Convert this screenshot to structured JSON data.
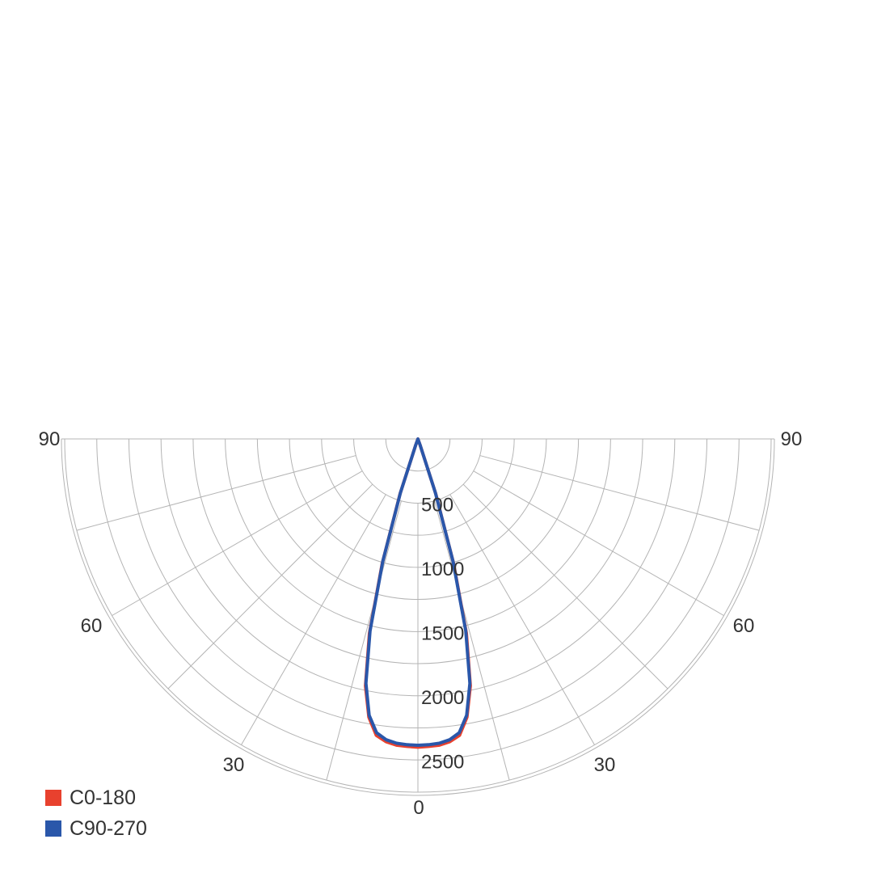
{
  "chart_data": {
    "type": "polar",
    "title": "",
    "angle_ticks": [
      "90",
      "60",
      "30",
      "0",
      "30",
      "60",
      "90"
    ],
    "radial_ticks": [
      "500",
      "1000",
      "1500",
      "2000",
      "2500"
    ],
    "rlim": [
      0,
      2750
    ],
    "angle_range": [
      -90,
      90
    ],
    "grid": true,
    "legend_position": "bottom-left",
    "series": [
      {
        "name": "C0-180",
        "color": "#e8412e",
        "angles": [
          -90,
          -20,
          -18,
          -16,
          -14,
          -12,
          -10,
          -8,
          -6,
          -4,
          -2,
          0,
          2,
          4,
          6,
          8,
          10,
          12,
          14,
          16,
          18,
          20,
          90
        ],
        "values": [
          0,
          50,
          450,
          1010,
          1560,
          1965,
          2200,
          2330,
          2370,
          2390,
          2395,
          2400,
          2395,
          2390,
          2370,
          2330,
          2200,
          1965,
          1560,
          1010,
          450,
          50,
          0
        ]
      },
      {
        "name": "C90-270",
        "color": "#2a57aa",
        "angles": [
          -90,
          -20,
          -18,
          -16,
          -14,
          -12,
          -10,
          -8,
          -6,
          -4,
          -2,
          0,
          2,
          4,
          6,
          8,
          10,
          12,
          14,
          16,
          18,
          20,
          90
        ],
        "values": [
          0,
          50,
          440,
          990,
          1540,
          1945,
          2185,
          2310,
          2355,
          2375,
          2382,
          2385,
          2382,
          2375,
          2355,
          2310,
          2185,
          1945,
          1540,
          990,
          440,
          50,
          0
        ]
      }
    ]
  },
  "legend": {
    "items": [
      {
        "label": "C0-180",
        "color": "#e8412e"
      },
      {
        "label": "C90-270",
        "color": "#2a57aa"
      }
    ]
  }
}
